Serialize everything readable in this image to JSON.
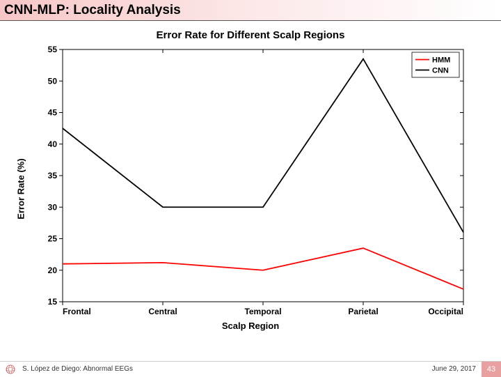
{
  "slide": {
    "title": "CNN-MLP: Locality Analysis",
    "header_gradient_from": "#f8c6c6",
    "header_gradient_to": "#ffffff"
  },
  "chart": {
    "type": "line",
    "title": "Error Rate for Different Scalp Regions",
    "title_fontsize": 15,
    "xlabel": "Scalp Region",
    "ylabel": "Error Rate (%)",
    "label_fontsize": 13,
    "categories": [
      "Frontal",
      "Central",
      "Temporal",
      "Parietal",
      "Occipital"
    ],
    "ylim": [
      15,
      55
    ],
    "ytick_step": 5,
    "tick_fontsize": 12,
    "background_color": "#ffffff",
    "plot_box_color": "#000000",
    "line_width": 1.8,
    "series": [
      {
        "name": "HMM",
        "color": "#ff0000",
        "values": [
          21.0,
          21.2,
          20.0,
          23.5,
          17.0
        ]
      },
      {
        "name": "CNN",
        "color": "#000000",
        "values": [
          42.5,
          30.0,
          30.0,
          53.5,
          26.0
        ]
      }
    ],
    "legend": {
      "position": "top-right",
      "border_color": "#000000",
      "background": "#ffffff",
      "fontsize": 11
    }
  },
  "footer": {
    "author": "S. López de Diego: Abnormal EEGs",
    "date": "June 29, 2017",
    "page": "43",
    "page_bg": "#e8a0a0",
    "logo_stroke": "#c94f4f"
  }
}
